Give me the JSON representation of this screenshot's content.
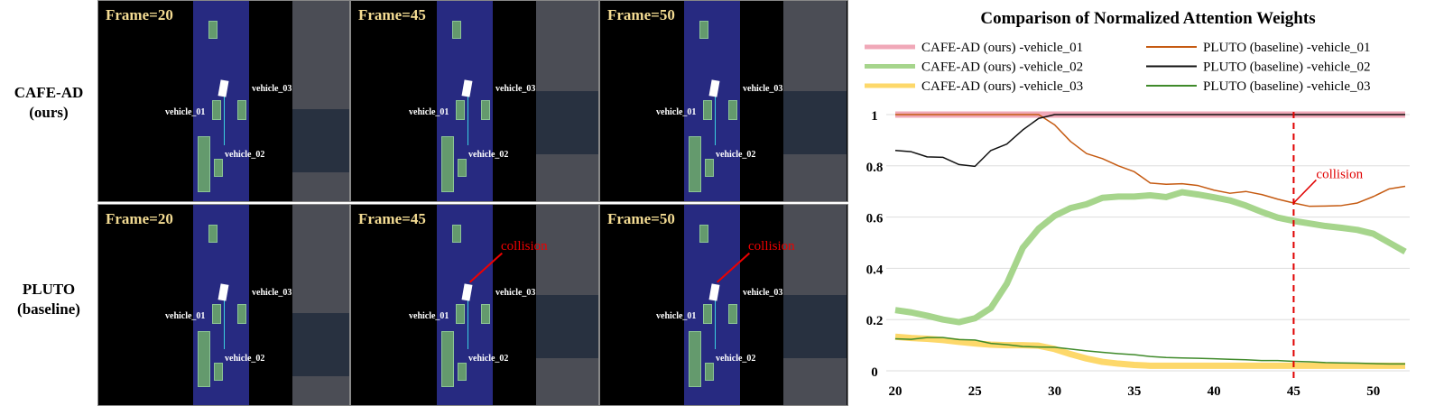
{
  "rows": [
    {
      "label1": "CAFE-AD",
      "label2": "(ours)"
    },
    {
      "label1": "PLUTO",
      "label2": "(baseline)"
    }
  ],
  "panels": [
    {
      "frame": "Frame=20",
      "v1": "vehicle_01",
      "v2": "vehicle_02",
      "v3": "vehicle_03"
    },
    {
      "frame": "Frame=45",
      "v1": "vehicle_01",
      "v2": "vehicle_02",
      "v3": "vehicle_03"
    },
    {
      "frame": "Frame=50",
      "v1": "vehicle_01",
      "v2": "vehicle_02",
      "v3": "vehicle_03"
    },
    {
      "frame": "Frame=20",
      "v1": "vehicle_01",
      "v2": "vehicle_02",
      "v3": "vehicle_03"
    },
    {
      "frame": "Frame=45",
      "v1": "vehicle_01",
      "v2": "vehicle_02",
      "v3": "vehicle_03",
      "collision": "collision"
    },
    {
      "frame": "Frame=50",
      "v1": "vehicle_01",
      "v2": "vehicle_02",
      "v3": "vehicle_03",
      "collision": "collision"
    }
  ],
  "chart_data": {
    "type": "line",
    "title": "Comparison of Normalized Attention Weights",
    "x": [
      20,
      21,
      22,
      23,
      24,
      25,
      26,
      27,
      28,
      29,
      30,
      31,
      32,
      33,
      34,
      35,
      36,
      37,
      38,
      39,
      40,
      41,
      42,
      43,
      44,
      45,
      46,
      47,
      48,
      49,
      50,
      51,
      52
    ],
    "xticks": [
      20,
      25,
      30,
      35,
      40,
      45,
      50
    ],
    "yticks": [
      0,
      0.2,
      0.4,
      0.6,
      0.8,
      1
    ],
    "ytick_labels": [
      "0",
      "0.2",
      "0.4",
      "0.6",
      "0.8",
      "1"
    ],
    "xlim": [
      20,
      52
    ],
    "ylim": [
      0,
      1
    ],
    "grid": "horizontal",
    "legend": "top",
    "series": [
      {
        "name": "CAFE-AD (ours) -vehicle_01",
        "color": "#f0a8b8",
        "width": 7,
        "values": [
          1,
          1,
          1,
          1,
          1,
          1,
          1,
          1,
          1,
          1,
          1,
          1,
          1,
          1,
          1,
          1,
          1,
          1,
          1,
          1,
          1,
          1,
          1,
          1,
          1,
          1,
          1,
          1,
          1,
          1,
          1,
          1,
          1
        ]
      },
      {
        "name": "CAFE-AD (ours) -vehicle_02",
        "color": "#a6d58c",
        "width": 7,
        "values": [
          0.237,
          0.228,
          0.215,
          0.2,
          0.19,
          0.205,
          0.245,
          0.34,
          0.48,
          0.555,
          0.605,
          0.635,
          0.65,
          0.675,
          0.68,
          0.68,
          0.685,
          0.678,
          0.697,
          0.688,
          0.677,
          0.665,
          0.645,
          0.62,
          0.598,
          0.585,
          0.575,
          0.565,
          0.558,
          0.55,
          0.535,
          0.5,
          0.465
        ]
      },
      {
        "name": "CAFE-AD (ours) -vehicle_03",
        "color": "#fdd86a",
        "width": 7,
        "values": [
          0.133,
          0.128,
          0.125,
          0.12,
          0.113,
          0.107,
          0.102,
          0.1,
          0.1,
          0.098,
          0.085,
          0.065,
          0.048,
          0.035,
          0.028,
          0.023,
          0.02,
          0.02,
          0.02,
          0.02,
          0.02,
          0.02,
          0.02,
          0.02,
          0.02,
          0.02,
          0.02,
          0.02,
          0.02,
          0.02,
          0.02,
          0.02,
          0.02
        ]
      },
      {
        "name": "PLUTO (baseline) -vehicle_01",
        "color": "#c55a11",
        "width": 1.5,
        "values": [
          1,
          1,
          1,
          1,
          1,
          1,
          1,
          1,
          1,
          1,
          0.96,
          0.895,
          0.848,
          0.828,
          0.8,
          0.777,
          0.733,
          0.728,
          0.73,
          0.723,
          0.705,
          0.693,
          0.7,
          0.688,
          0.67,
          0.655,
          0.642,
          0.643,
          0.645,
          0.655,
          0.68,
          0.71,
          0.72
        ]
      },
      {
        "name": "PLUTO (baseline) -vehicle_02",
        "color": "#111111",
        "width": 1.5,
        "values": [
          0.86,
          0.855,
          0.835,
          0.833,
          0.805,
          0.798,
          0.86,
          0.885,
          0.94,
          0.985,
          1,
          1,
          1,
          1,
          1,
          1,
          1,
          1,
          1,
          1,
          1,
          1,
          1,
          1,
          1,
          1,
          1,
          1,
          1,
          1,
          1,
          1,
          1
        ]
      },
      {
        "name": "PLUTO (baseline) -vehicle_03",
        "color": "#3f8a2a",
        "width": 1.5,
        "values": [
          0.125,
          0.123,
          0.13,
          0.13,
          0.122,
          0.12,
          0.107,
          0.102,
          0.095,
          0.093,
          0.092,
          0.085,
          0.078,
          0.072,
          0.067,
          0.063,
          0.056,
          0.052,
          0.05,
          0.049,
          0.047,
          0.045,
          0.043,
          0.04,
          0.04,
          0.037,
          0.035,
          0.032,
          0.031,
          0.03,
          0.028,
          0.027,
          0.027
        ]
      }
    ],
    "annotation": {
      "text": "collision",
      "x": 45,
      "color": "#e00000"
    }
  }
}
